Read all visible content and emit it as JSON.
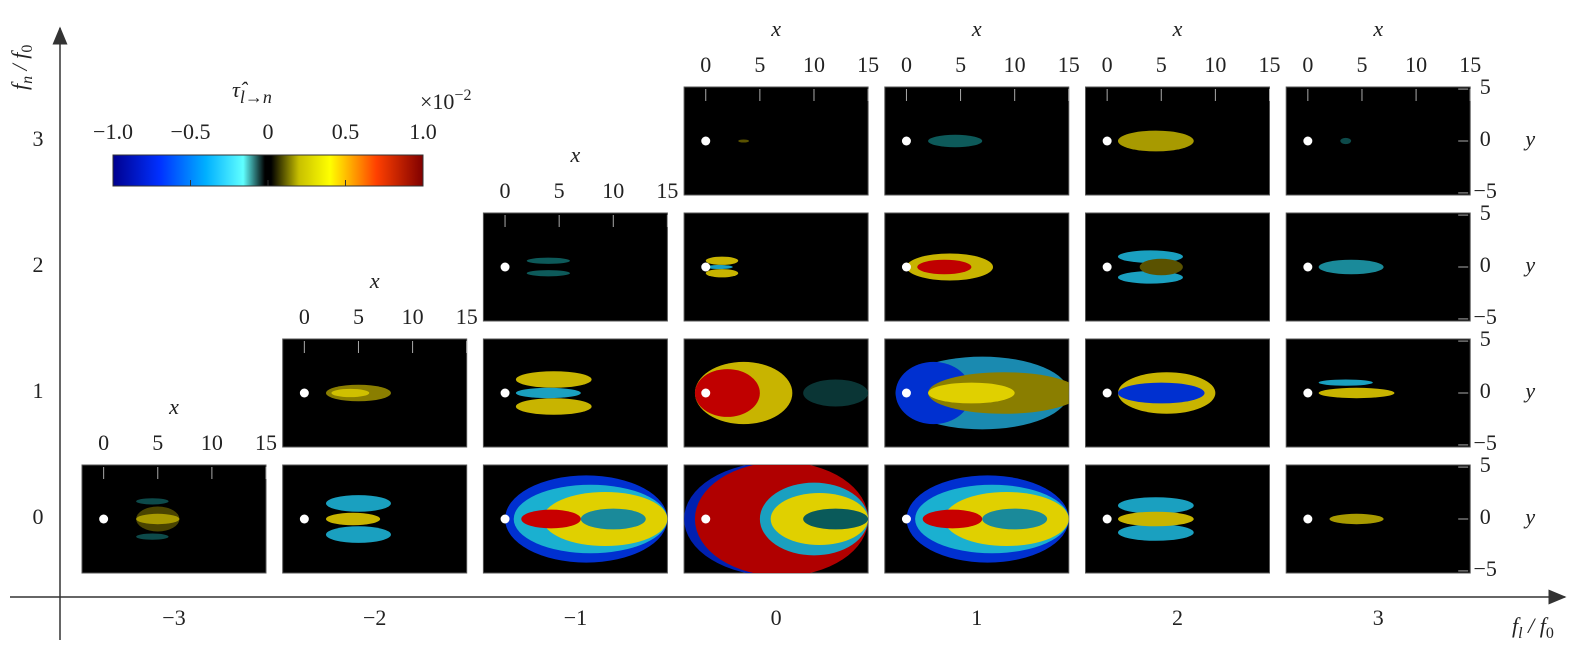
{
  "chart_data": {
    "type": "contour-grid",
    "xlabel": {
      "main": "f",
      "sub": "l",
      "sep": " / f",
      "sep_sub": "0"
    },
    "ylabel": {
      "main": "f",
      "sub": "n",
      "sep": " / f",
      "sep_sub": "0"
    },
    "xlim": [
      -3.46,
      3.8
    ],
    "xticks": [
      {
        "value": -3,
        "label": "−3"
      },
      {
        "value": -2,
        "label": "−2"
      },
      {
        "value": -1,
        "label": "−1"
      },
      0,
      1,
      2,
      3
    ],
    "ylim": [
      -0.62,
      4.05
    ],
    "yticks": [
      0,
      1,
      2,
      3
    ],
    "colorbar": {
      "symbol": "τ̂",
      "sub": "l→n",
      "scale_base": "×10",
      "scale_exponent": "−2",
      "lim": [
        -1,
        1
      ],
      "ticks": [
        {
          "value": -1,
          "label": "−1.0"
        },
        {
          "value": -0.5,
          "label": "−0.5"
        },
        0,
        0.5,
        {
          "value": 1,
          "label": "1.0"
        }
      ]
    },
    "panel_xlabel": "x",
    "panel_ylabel": "y",
    "panel_xlim": [
      -2,
      15
    ],
    "panel_xticks": [
      0,
      5,
      10,
      15
    ],
    "panel_ylim": [
      -5.2,
      5.2
    ],
    "panel_yticks": [
      5,
      0,
      {
        "value": -5,
        "label": "−5"
      }
    ],
    "panels": [
      {
        "f_l": -3,
        "f_n": 0
      },
      {
        "f_l": -2,
        "f_n": 0
      },
      {
        "f_l": -2,
        "f_n": 1
      },
      {
        "f_l": -1,
        "f_n": 0
      },
      {
        "f_l": -1,
        "f_n": 1
      },
      {
        "f_l": -1,
        "f_n": 2
      },
      {
        "f_l": 0,
        "f_n": 0
      },
      {
        "f_l": 0,
        "f_n": 1
      },
      {
        "f_l": 0,
        "f_n": 2
      },
      {
        "f_l": 0,
        "f_n": 3
      },
      {
        "f_l": 1,
        "f_n": 0
      },
      {
        "f_l": 1,
        "f_n": 1
      },
      {
        "f_l": 1,
        "f_n": 2
      },
      {
        "f_l": 1,
        "f_n": 3
      },
      {
        "f_l": 2,
        "f_n": 0
      },
      {
        "f_l": 2,
        "f_n": 1
      },
      {
        "f_l": 2,
        "f_n": 2
      },
      {
        "f_l": 2,
        "f_n": 3
      },
      {
        "f_l": 3,
        "f_n": 0
      },
      {
        "f_l": 3,
        "f_n": 1
      },
      {
        "f_l": 3,
        "f_n": 2
      },
      {
        "f_l": 3,
        "f_n": 3
      }
    ]
  }
}
